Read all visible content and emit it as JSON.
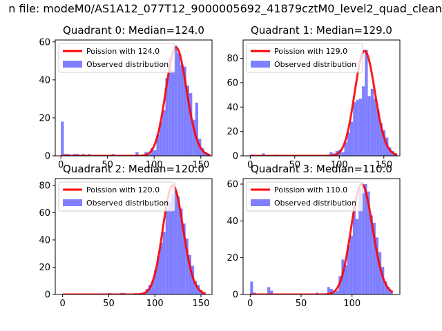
{
  "figure_title": "n file: modeM0/AS1A12_077T12_9000005692_41879cztM0_level2_quad_clean",
  "colors": {
    "fit": "#ff0000",
    "observed": "#7f7fff",
    "frame": "#000000"
  },
  "chart_data": [
    {
      "type": "bar",
      "title": "Quadrant 0: Median=124.0",
      "xlim": [
        -6,
        162
      ],
      "ylim": [
        0,
        61
      ],
      "xticks": [
        0,
        50,
        100,
        150
      ],
      "yticks": [
        0,
        20,
        40,
        60
      ],
      "legend_placement": "top-left",
      "series": [
        {
          "name": "Poission with 124.0",
          "kind": "poisson-line",
          "lambda": 124,
          "peak": 57,
          "x": [
            0,
            160
          ]
        },
        {
          "name": "Observed distribution",
          "kind": "histogram",
          "bin_width": 3.2,
          "bins_x": [
            0,
            3.2,
            6.4,
            9.6,
            12.8,
            16,
            19.2,
            22.4,
            25.6,
            28.8,
            32,
            35.2,
            38.4,
            41.6,
            44.8,
            48,
            51.2,
            54.4,
            57.6,
            60.8,
            64,
            67.2,
            70.4,
            73.6,
            76.8,
            80,
            83.2,
            86.4,
            89.6,
            92.8,
            96,
            99.2,
            102.4,
            105.6,
            108.8,
            112,
            115.2,
            118.4,
            121.6,
            124.8,
            128,
            131.2,
            134.4,
            137.6,
            140.8,
            144,
            147.2,
            150.4,
            153.6,
            156.8
          ],
          "counts": [
            18,
            1,
            1,
            0,
            1,
            1,
            0,
            1,
            0,
            1,
            0,
            0,
            0,
            0,
            0,
            0,
            0,
            1,
            0,
            0,
            0,
            0,
            0,
            0,
            0,
            2,
            0,
            0,
            2,
            1,
            4,
            3,
            11,
            18,
            24,
            41,
            52,
            45,
            58,
            54,
            48,
            47,
            37,
            33,
            19,
            28,
            9,
            4,
            2,
            1
          ]
        }
      ]
    },
    {
      "type": "bar",
      "title": "Quadrant 1: Median=129.0",
      "xlim": [
        -8,
        168
      ],
      "ylim": [
        0,
        95
      ],
      "xticks": [
        0,
        50,
        100,
        150
      ],
      "yticks": [
        0,
        20,
        40,
        60,
        80
      ],
      "legend_placement": "top-left",
      "series": [
        {
          "name": "Poission with 129.0",
          "kind": "poisson-line",
          "lambda": 129,
          "peak": 86,
          "x": [
            0,
            165
          ]
        },
        {
          "name": "Observed distribution",
          "kind": "histogram",
          "bin_width": 3.3,
          "bins_x": [
            0,
            3.3,
            6.6,
            9.9,
            13.2,
            16.5,
            19.8,
            23.1,
            26.4,
            29.7,
            33,
            36.3,
            39.6,
            42.9,
            46.2,
            49.5,
            52.8,
            56.1,
            59.4,
            62.7,
            66,
            69.3,
            72.6,
            75.9,
            79.2,
            82.5,
            85.8,
            89.1,
            92.4,
            95.7,
            99,
            102.3,
            105.6,
            108.9,
            112.2,
            115.5,
            118.8,
            122.1,
            125.4,
            128.7,
            132,
            135.3,
            138.6,
            141.9,
            145.2,
            148.5,
            151.8,
            155.1,
            158.4,
            161.7
          ],
          "counts": [
            1,
            0,
            0,
            0,
            2,
            0,
            0,
            0,
            1,
            0,
            0,
            0,
            0,
            0,
            0,
            0,
            0,
            0,
            0,
            0,
            0,
            0,
            0,
            0,
            0,
            0,
            1,
            3,
            2,
            4,
            5,
            3,
            11,
            19,
            28,
            44,
            46,
            47,
            57,
            87,
            49,
            55,
            47,
            38,
            27,
            21,
            15,
            7,
            4,
            2
          ]
        }
      ]
    },
    {
      "type": "bar",
      "title": "Quadrant 2: Median=120.0",
      "xlim": [
        -8,
        162
      ],
      "ylim": [
        0,
        85
      ],
      "xticks": [
        0,
        50,
        100,
        150
      ],
      "yticks": [
        0,
        20,
        40,
        60,
        80
      ],
      "legend_placement": "top-left",
      "series": [
        {
          "name": "Poission with 120.0",
          "kind": "poisson-line",
          "lambda": 120,
          "peak": 80,
          "x": [
            0,
            155
          ]
        },
        {
          "name": "Observed distribution",
          "kind": "histogram",
          "bin_width": 3.1,
          "bins_x": [
            0,
            3.1,
            6.2,
            9.3,
            12.4,
            15.5,
            18.6,
            21.7,
            24.8,
            27.9,
            31,
            34.1,
            37.2,
            40.3,
            43.4,
            46.5,
            49.6,
            52.7,
            55.8,
            58.9,
            62,
            65.1,
            68.2,
            71.3,
            74.4,
            77.5,
            80.6,
            83.7,
            86.8,
            89.9,
            93,
            96.1,
            99.2,
            102.3,
            105.4,
            108.5,
            111.6,
            114.7,
            117.8,
            120.9,
            124,
            127.1,
            130.2,
            133.3,
            136.4,
            139.5,
            142.6,
            145.7,
            148.8,
            151.9
          ],
          "counts": [
            0,
            0,
            0,
            0,
            0,
            0,
            0,
            0,
            0,
            0,
            0,
            0,
            0,
            0,
            0,
            0,
            1,
            0,
            0,
            0,
            1,
            1,
            0,
            0,
            0,
            1,
            0,
            1,
            1,
            4,
            7,
            10,
            18,
            28,
            38,
            46,
            63,
            68,
            74,
            76,
            72,
            63,
            52,
            41,
            29,
            21,
            10,
            7,
            3,
            1
          ]
        }
      ]
    },
    {
      "type": "bar",
      "title": "Quadrant 3: Median=110.0",
      "xlim": [
        -7,
        147
      ],
      "ylim": [
        0,
        63
      ],
      "xticks": [
        0,
        50,
        100
      ],
      "yticks": [
        0,
        20,
        40,
        60
      ],
      "legend_placement": "top-left",
      "series": [
        {
          "name": "Poission with 110.0",
          "kind": "poisson-line",
          "lambda": 110,
          "peak": 60,
          "x": [
            0,
            140
          ]
        },
        {
          "name": "Observed distribution",
          "kind": "histogram",
          "bin_width": 2.8,
          "bins_x": [
            0,
            2.8,
            5.6,
            8.4,
            11.2,
            14,
            16.8,
            19.6,
            22.4,
            25.2,
            28,
            30.8,
            33.6,
            36.4,
            39.2,
            42,
            44.8,
            47.6,
            50.4,
            53.2,
            56,
            58.8,
            61.6,
            64.4,
            67.2,
            70,
            72.8,
            75.6,
            78.4,
            81.2,
            84,
            86.8,
            89.6,
            92.4,
            95.2,
            98,
            100.8,
            103.6,
            106.4,
            109.2,
            112,
            114.8,
            117.6,
            120.4,
            123.2,
            126,
            128.8,
            131.6,
            134.4,
            137.2
          ],
          "counts": [
            7,
            1,
            0,
            0,
            0,
            0,
            4,
            2,
            0,
            0,
            0,
            0,
            0,
            0,
            0,
            0,
            0,
            0,
            0,
            0,
            0,
            0,
            0,
            1,
            0,
            0,
            0,
            4,
            3,
            1,
            2,
            10,
            19,
            16,
            27,
            32,
            48,
            41,
            58,
            55,
            60,
            56,
            43,
            39,
            31,
            23,
            15,
            7,
            4,
            2
          ]
        }
      ]
    }
  ]
}
